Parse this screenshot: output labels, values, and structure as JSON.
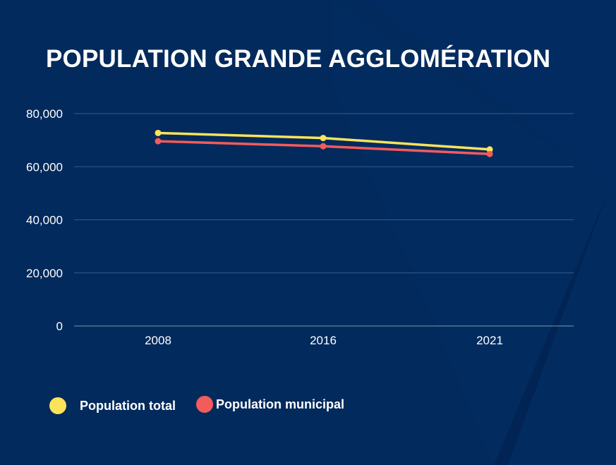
{
  "title": "POPULATION GRANDE AGGLOMÉRATION",
  "colors": {
    "background": "#022a5c",
    "grid": "#3b5a85",
    "axis_text": "#ffffff",
    "series_total": "#fce35a",
    "series_municipal": "#f45b5b"
  },
  "chart_data": {
    "type": "line",
    "title": "POPULATION GRANDE AGGLOMÉRATION",
    "x": [
      "2008",
      "2016",
      "2021"
    ],
    "ylim": [
      0,
      80000
    ],
    "yticks": [
      0,
      20000,
      40000,
      60000,
      80000
    ],
    "ytick_labels": [
      "0",
      "20,000",
      "40,000",
      "60,000",
      "80,000"
    ],
    "grid": true,
    "legend_position": "bottom-left",
    "series": [
      {
        "name": "Population total",
        "values": [
          72700,
          70800,
          66500
        ],
        "color": "#fce35a"
      },
      {
        "name": "Population municipal",
        "values": [
          69600,
          67700,
          64800
        ],
        "color": "#f45b5b"
      }
    ]
  }
}
